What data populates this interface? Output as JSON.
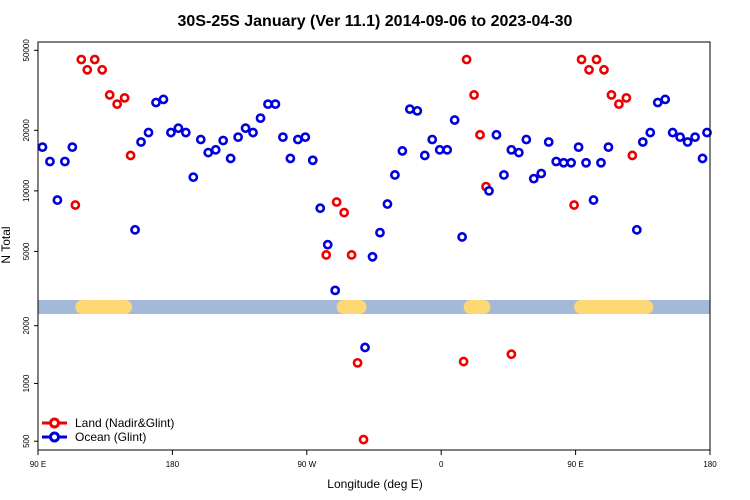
{
  "chart_data": {
    "type": "scatter",
    "title": "30S-25S January (Ver 11.1)   2014-09-06 to 2023-04-30",
    "xlabel": "Longitude (deg E)",
    "ylabel": "N Total",
    "x_ticks": [
      {
        "value": 90,
        "label": "90 E"
      },
      {
        "value": 180,
        "label": "180"
      },
      {
        "value": 270,
        "label": "90 W"
      },
      {
        "value": 360,
        "label": "0"
      },
      {
        "value": 450,
        "label": "90 E"
      },
      {
        "value": 540,
        "label": "180"
      }
    ],
    "y_scale": "log",
    "y_ticks_upper": [
      5000,
      10000,
      20000,
      50000
    ],
    "y_ticks_lower": [
      500,
      1000,
      2000
    ],
    "xlim": [
      90,
      540
    ],
    "ylim_upper": [
      3000,
      55000
    ],
    "ylim_lower": [
      450,
      2300
    ],
    "grid": false,
    "legend_position": "bottom-left",
    "band": {
      "color_ocean": "#a4b8d8",
      "color_land": "#fdd874",
      "land_ranges": [
        [
          115,
          153
        ],
        [
          290,
          310
        ],
        [
          375,
          393
        ],
        [
          449,
          502
        ]
      ]
    },
    "series": [
      {
        "name": "Land (Nadir&Glint)",
        "color": "#ee0000",
        "points": [
          [
            115,
            8500
          ],
          [
            119,
            45000
          ],
          [
            123,
            40000
          ],
          [
            128,
            45000
          ],
          [
            133,
            40000
          ],
          [
            138,
            30000
          ],
          [
            143,
            27000
          ],
          [
            148,
            29000
          ],
          [
            152,
            15000
          ],
          [
            290,
            8800
          ],
          [
            295,
            7800
          ],
          [
            283,
            4800
          ],
          [
            300,
            4800
          ],
          [
            304,
            1280
          ],
          [
            308,
            510
          ],
          [
            375,
            1300
          ],
          [
            377,
            45000
          ],
          [
            382,
            30000
          ],
          [
            386,
            19000
          ],
          [
            390,
            10500
          ],
          [
            407,
            1420
          ],
          [
            449,
            8500
          ],
          [
            454,
            45000
          ],
          [
            459,
            40000
          ],
          [
            464,
            45000
          ],
          [
            469,
            40000
          ],
          [
            474,
            30000
          ],
          [
            479,
            27000
          ],
          [
            484,
            29000
          ],
          [
            488,
            15000
          ]
        ]
      },
      {
        "name": "Ocean (Glint)",
        "color": "#0000dd",
        "points": [
          [
            93,
            16500
          ],
          [
            98,
            14000
          ],
          [
            103,
            9000
          ],
          [
            108,
            14000
          ],
          [
            113,
            16500
          ],
          [
            155,
            6400
          ],
          [
            159,
            17500
          ],
          [
            164,
            19500
          ],
          [
            169,
            27500
          ],
          [
            174,
            28500
          ],
          [
            179,
            19500
          ],
          [
            184,
            20500
          ],
          [
            189,
            19500
          ],
          [
            194,
            11700
          ],
          [
            199,
            18000
          ],
          [
            204,
            15500
          ],
          [
            209,
            16000
          ],
          [
            214,
            17800
          ],
          [
            219,
            14500
          ],
          [
            224,
            18500
          ],
          [
            229,
            20500
          ],
          [
            234,
            19500
          ],
          [
            239,
            23000
          ],
          [
            244,
            27000
          ],
          [
            249,
            27000
          ],
          [
            254,
            18500
          ],
          [
            259,
            14500
          ],
          [
            264,
            18000
          ],
          [
            269,
            18500
          ],
          [
            274,
            14200
          ],
          [
            279,
            8200
          ],
          [
            284,
            5400
          ],
          [
            289,
            3200
          ],
          [
            309,
            1540
          ],
          [
            314,
            4700
          ],
          [
            319,
            6200
          ],
          [
            324,
            8600
          ],
          [
            329,
            12000
          ],
          [
            334,
            15800
          ],
          [
            339,
            25500
          ],
          [
            344,
            25000
          ],
          [
            349,
            15000
          ],
          [
            354,
            18000
          ],
          [
            359,
            16000
          ],
          [
            364,
            16000
          ],
          [
            369,
            22500
          ],
          [
            374,
            5900
          ],
          [
            392,
            10000
          ],
          [
            397,
            19000
          ],
          [
            402,
            12000
          ],
          [
            407,
            16000
          ],
          [
            412,
            15500
          ],
          [
            417,
            18000
          ],
          [
            422,
            11500
          ],
          [
            427,
            12200
          ],
          [
            432,
            17500
          ],
          [
            437,
            14000
          ],
          [
            442,
            13800
          ],
          [
            447,
            13800
          ],
          [
            452,
            16500
          ],
          [
            457,
            13800
          ],
          [
            462,
            9000
          ],
          [
            467,
            13800
          ],
          [
            472,
            16500
          ],
          [
            491,
            6400
          ],
          [
            495,
            17500
          ],
          [
            500,
            19500
          ],
          [
            505,
            27500
          ],
          [
            510,
            28500
          ],
          [
            515,
            19500
          ],
          [
            520,
            18500
          ],
          [
            525,
            17500
          ],
          [
            530,
            18500
          ],
          [
            535,
            14500
          ],
          [
            538,
            19500
          ]
        ]
      }
    ]
  }
}
